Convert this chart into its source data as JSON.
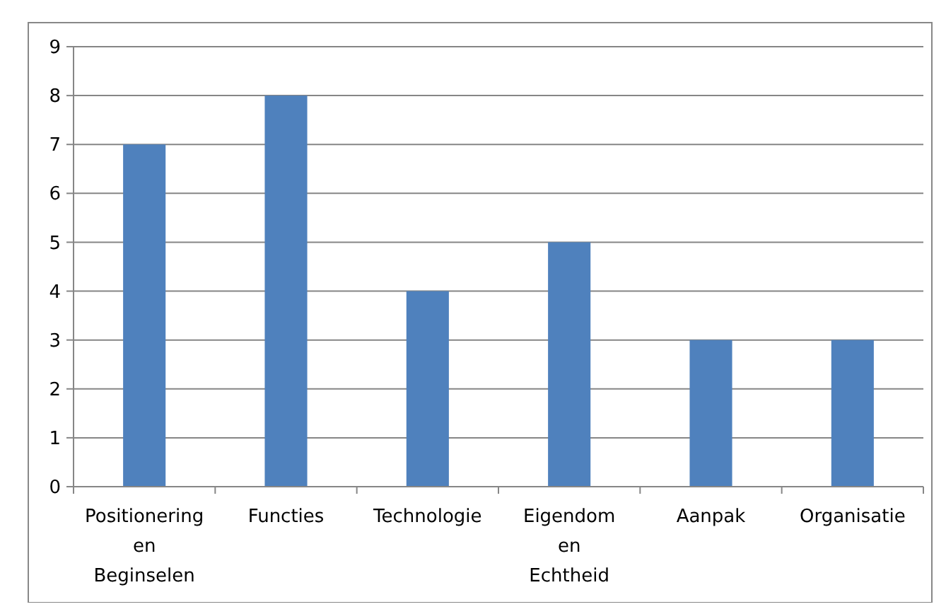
{
  "chart_data": {
    "type": "bar",
    "categories": [
      "Positionering en Beginselen",
      "Functies",
      "Technologie",
      "Eigendom en Echtheid",
      "Aanpak",
      "Organisatie"
    ],
    "values": [
      7,
      8,
      4,
      5,
      3,
      3
    ],
    "color": "#4f81bd",
    "ylim": [
      0,
      9
    ],
    "yticks": [
      0,
      1,
      2,
      3,
      4,
      5,
      6,
      7,
      8,
      9
    ],
    "grid": "y"
  }
}
